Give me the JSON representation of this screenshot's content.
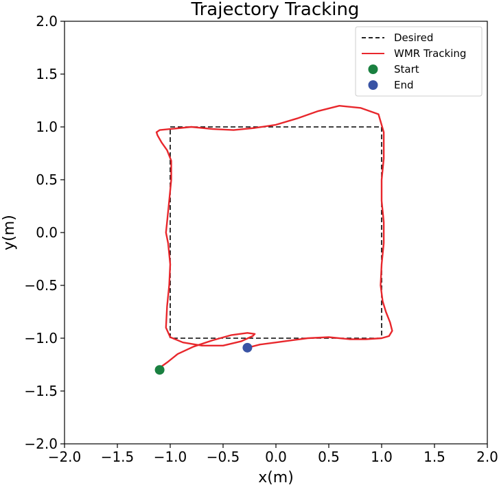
{
  "chart_data": {
    "type": "line",
    "title": "Trajectory Tracking",
    "xlabel": "x(m)",
    "ylabel": "y(m)",
    "xlim": [
      -2.0,
      2.0
    ],
    "ylim": [
      -2.0,
      2.0
    ],
    "x_ticks": [
      "−2.0",
      "−1.5",
      "−1.0",
      "−0.5",
      "0.0",
      "0.5",
      "1.0",
      "1.5",
      "2.0"
    ],
    "y_ticks": [
      "−2.0",
      "−1.5",
      "−1.0",
      "−0.5",
      "0.0",
      "0.5",
      "1.0",
      "1.5",
      "2.0"
    ],
    "grid": false,
    "legend_position": "top-right",
    "colors": {
      "desired": "#000000",
      "tracking": "#e8272c",
      "start": "#1a8040",
      "end": "#3953a4"
    },
    "legend": [
      {
        "label": "Desired",
        "style": "dashed-line",
        "color": "#000000"
      },
      {
        "label": "WMR Tracking",
        "style": "solid-line",
        "color": "#e8272c"
      },
      {
        "label": "Start",
        "style": "marker",
        "color": "#1a8040"
      },
      {
        "label": "End",
        "style": "marker",
        "color": "#3953a4"
      }
    ],
    "series": [
      {
        "name": "Desired",
        "x": [
          -1.0,
          1.0,
          1.0,
          -1.0,
          -1.0
        ],
        "y": [
          1.0,
          1.0,
          -1.0,
          -1.0,
          1.0
        ]
      },
      {
        "name": "WMR Tracking",
        "x": [
          -1.1,
          -1.03,
          -0.93,
          -0.78,
          -0.6,
          -0.42,
          -0.27,
          -0.2,
          -0.22,
          -0.33,
          -0.5,
          -0.7,
          -0.88,
          -1.0,
          -1.04,
          -1.03,
          -1.01,
          -1.0,
          -1.02,
          -1.04,
          -1.03,
          -1.01,
          -0.99,
          -0.99,
          -1.03,
          -1.08,
          -1.12,
          -1.13,
          -1.1,
          -1.0,
          -0.8,
          -0.6,
          -0.4,
          -0.2,
          0.0,
          0.2,
          0.4,
          0.6,
          0.8,
          0.97,
          1.02,
          1.02,
          1.0,
          1.0,
          1.02,
          1.02,
          1.0,
          0.99,
          1.01,
          1.04,
          1.08,
          1.1,
          1.07,
          1.0,
          0.85,
          0.7,
          0.5,
          0.3,
          0.15,
          0.0,
          -0.15,
          -0.27
        ],
        "y": [
          -1.28,
          -1.23,
          -1.15,
          -1.08,
          -1.02,
          -0.97,
          -0.95,
          -0.96,
          -0.98,
          -1.03,
          -1.07,
          -1.07,
          -1.04,
          -0.99,
          -0.9,
          -0.7,
          -0.5,
          -0.3,
          -0.1,
          0.0,
          0.1,
          0.3,
          0.5,
          0.68,
          0.78,
          0.85,
          0.92,
          0.95,
          0.97,
          0.98,
          1.0,
          0.98,
          0.97,
          0.99,
          1.02,
          1.08,
          1.15,
          1.2,
          1.18,
          1.12,
          0.95,
          0.7,
          0.5,
          0.3,
          0.1,
          -0.1,
          -0.3,
          -0.5,
          -0.65,
          -0.75,
          -0.85,
          -0.93,
          -0.98,
          -1.0,
          -1.01,
          -1.01,
          -0.99,
          -1.0,
          -1.02,
          -1.04,
          -1.06,
          -1.09
        ]
      }
    ],
    "points": {
      "start": {
        "x": -1.1,
        "y": -1.3
      },
      "end": {
        "x": -0.27,
        "y": -1.09
      }
    }
  }
}
